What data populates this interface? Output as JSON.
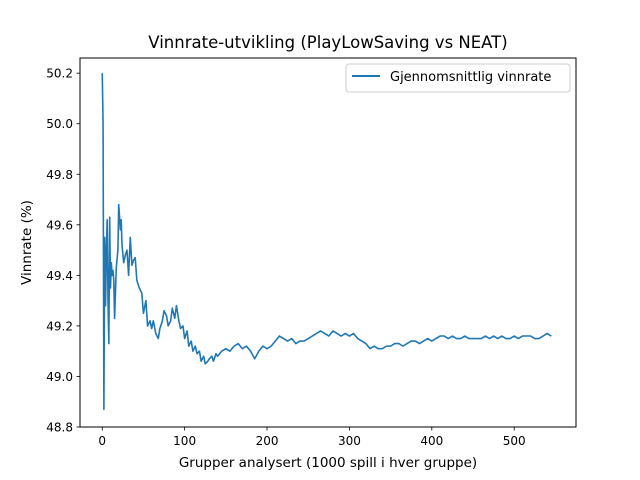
{
  "chart_data": {
    "type": "line",
    "title": "Vinnrate-utvikling (PlayLowSaving vs NEAT)",
    "xlabel": "Grupper analysert (1000 spill i hver gruppe)",
    "ylabel": "Vinnrate (%)",
    "xlim": [
      -27,
      575
    ],
    "ylim": [
      48.8,
      50.26
    ],
    "xticks": [
      0,
      100,
      200,
      300,
      400,
      500
    ],
    "yticks": [
      48.8,
      49.0,
      49.2,
      49.4,
      49.6,
      49.8,
      50.0,
      50.2
    ],
    "ytick_labels": [
      "48.8",
      "49.0",
      "49.2",
      "49.4",
      "49.6",
      "49.8",
      "50.0",
      "50.2"
    ],
    "xtick_labels": [
      "0",
      "100",
      "200",
      "300",
      "400",
      "500"
    ],
    "grid": false,
    "legend_position": "top-right",
    "series": [
      {
        "name": "Gjennomsnittlig vinnrate",
        "color": "#1f77b4",
        "x": [
          0,
          1,
          2,
          3,
          4,
          5,
          6,
          7,
          8,
          9,
          10,
          11,
          12,
          13,
          14,
          15,
          17,
          19,
          20,
          22,
          23,
          24,
          26,
          28,
          30,
          32,
          34,
          36,
          38,
          40,
          42,
          45,
          48,
          50,
          53,
          55,
          58,
          60,
          62,
          65,
          68,
          70,
          73,
          75,
          78,
          80,
          83,
          85,
          88,
          90,
          93,
          95,
          98,
          100,
          103,
          105,
          108,
          110,
          113,
          115,
          118,
          120,
          123,
          125,
          128,
          130,
          133,
          135,
          138,
          140,
          145,
          150,
          155,
          160,
          165,
          170,
          175,
          180,
          185,
          190,
          195,
          200,
          205,
          210,
          215,
          220,
          225,
          230,
          235,
          240,
          245,
          250,
          255,
          260,
          265,
          270,
          275,
          280,
          285,
          290,
          295,
          300,
          305,
          310,
          315,
          320,
          325,
          330,
          335,
          340,
          345,
          350,
          355,
          360,
          365,
          370,
          375,
          380,
          385,
          390,
          395,
          400,
          405,
          410,
          415,
          420,
          425,
          430,
          435,
          440,
          445,
          450,
          455,
          460,
          465,
          470,
          475,
          480,
          485,
          490,
          495,
          500,
          505,
          510,
          515,
          520,
          525,
          530,
          535,
          540,
          545
        ],
        "values": [
          50.2,
          50.0,
          48.87,
          49.55,
          49.28,
          49.5,
          49.62,
          49.3,
          49.13,
          49.63,
          49.35,
          49.45,
          49.4,
          49.42,
          49.38,
          49.23,
          49.43,
          49.5,
          49.68,
          49.58,
          49.62,
          49.52,
          49.45,
          49.48,
          49.5,
          49.4,
          49.55,
          49.44,
          49.46,
          49.47,
          49.38,
          49.35,
          49.33,
          49.25,
          49.3,
          49.2,
          49.22,
          49.19,
          49.22,
          49.17,
          49.15,
          49.19,
          49.22,
          49.26,
          49.24,
          49.2,
          49.22,
          49.27,
          49.23,
          49.28,
          49.22,
          49.19,
          49.2,
          49.15,
          49.18,
          49.12,
          49.14,
          49.1,
          49.12,
          49.09,
          49.1,
          49.06,
          49.08,
          49.05,
          49.06,
          49.07,
          49.08,
          49.06,
          49.09,
          49.08,
          49.1,
          49.11,
          49.1,
          49.12,
          49.13,
          49.11,
          49.12,
          49.1,
          49.07,
          49.1,
          49.12,
          49.11,
          49.12,
          49.14,
          49.16,
          49.15,
          49.14,
          49.15,
          49.13,
          49.14,
          49.14,
          49.15,
          49.16,
          49.17,
          49.18,
          49.17,
          49.16,
          49.18,
          49.17,
          49.16,
          49.17,
          49.16,
          49.17,
          49.15,
          49.14,
          49.13,
          49.11,
          49.12,
          49.11,
          49.11,
          49.12,
          49.12,
          49.13,
          49.13,
          49.12,
          49.13,
          49.14,
          49.14,
          49.13,
          49.14,
          49.15,
          49.14,
          49.15,
          49.16,
          49.16,
          49.15,
          49.16,
          49.15,
          49.15,
          49.16,
          49.15,
          49.15,
          49.15,
          49.15,
          49.16,
          49.15,
          49.16,
          49.15,
          49.16,
          49.15,
          49.15,
          49.16,
          49.15,
          49.16,
          49.16,
          49.16,
          49.15,
          49.15,
          49.16,
          49.17,
          49.16
        ]
      }
    ]
  }
}
